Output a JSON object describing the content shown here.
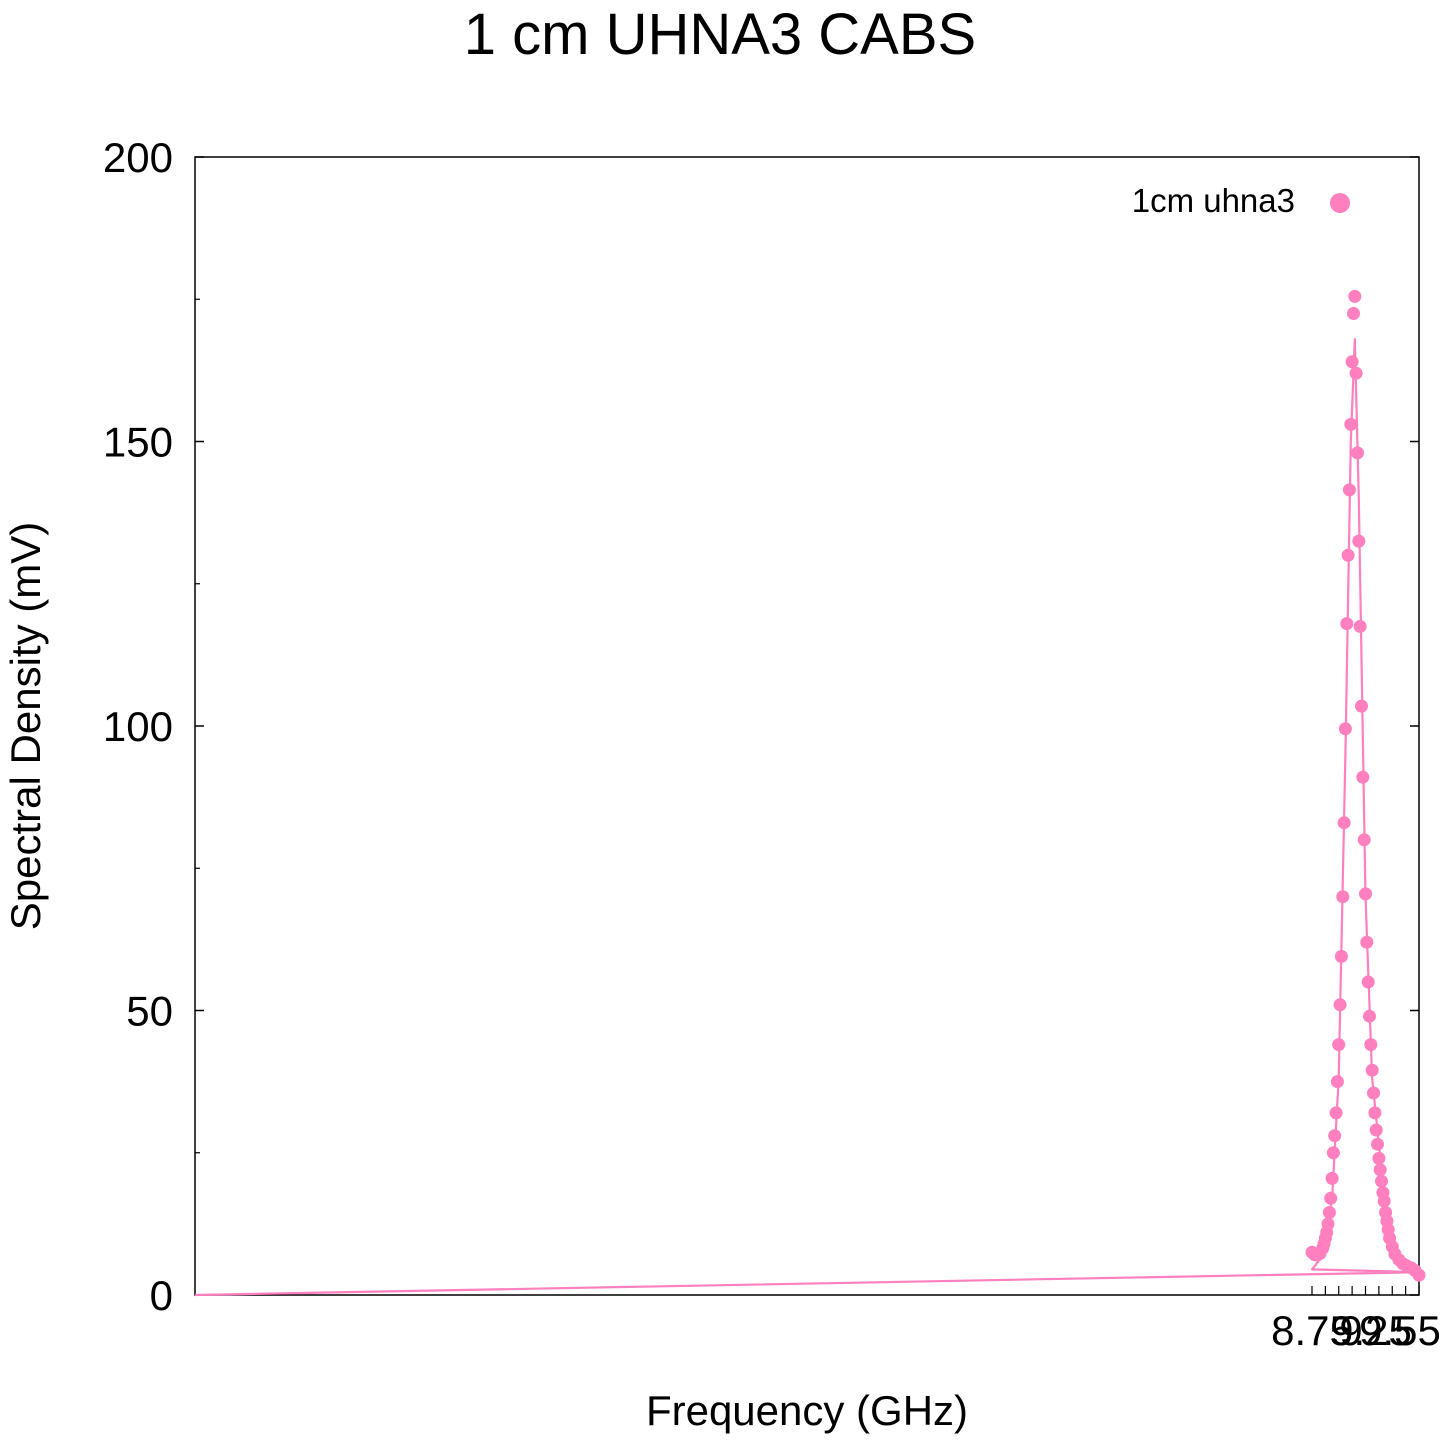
{
  "chart_data": {
    "type": "scatter",
    "title": "1 cm UHNA3 CABS",
    "xlabel": "Frequency (GHz)",
    "ylabel": "Spectral Density (mV)",
    "ylim": [
      0,
      200
    ],
    "xlim": [
      8.75,
      9.55
    ],
    "y_ticks": [
      "0",
      "50",
      "100",
      "150",
      "200"
    ],
    "x_ticks": [
      "8.75",
      "9",
      "9.25",
      "9.55"
    ],
    "grid": false,
    "legend_position": "top-right",
    "series": [
      {
        "name": "1cm uhna3",
        "color": "#ff7fbf",
        "marker": "circle",
        "points": [
          [
            8.75,
            7.5
          ],
          [
            8.77,
            7.1
          ],
          [
            8.79,
            7.0
          ],
          [
            8.81,
            7.3
          ],
          [
            8.83,
            8.2
          ],
          [
            8.84,
            9.0
          ],
          [
            8.85,
            10.0
          ],
          [
            8.86,
            11.0
          ],
          [
            8.87,
            12.5
          ],
          [
            8.88,
            14.5
          ],
          [
            8.89,
            17.0
          ],
          [
            8.9,
            20.5
          ],
          [
            8.91,
            25.0
          ],
          [
            8.92,
            28.0
          ],
          [
            8.93,
            32.0
          ],
          [
            8.94,
            37.5
          ],
          [
            8.95,
            44.0
          ],
          [
            8.96,
            51.0
          ],
          [
            8.97,
            59.5
          ],
          [
            8.98,
            70.0
          ],
          [
            8.99,
            83.0
          ],
          [
            9.0,
            99.5
          ],
          [
            9.01,
            118.0
          ],
          [
            9.02,
            130.0
          ],
          [
            9.03,
            141.5
          ],
          [
            9.04,
            153.0
          ],
          [
            9.05,
            164.0
          ],
          [
            9.06,
            172.5
          ],
          [
            9.07,
            175.5
          ],
          [
            9.08,
            162.0
          ],
          [
            9.09,
            148.0
          ],
          [
            9.1,
            132.5
          ],
          [
            9.11,
            117.5
          ],
          [
            9.12,
            103.5
          ],
          [
            9.13,
            91.0
          ],
          [
            9.14,
            80.0
          ],
          [
            9.15,
            70.5
          ],
          [
            9.16,
            62.0
          ],
          [
            9.17,
            55.0
          ],
          [
            9.18,
            49.0
          ],
          [
            9.19,
            44.0
          ],
          [
            9.2,
            39.5
          ],
          [
            9.21,
            35.5
          ],
          [
            9.22,
            32.0
          ],
          [
            9.23,
            29.0
          ],
          [
            9.24,
            26.5
          ],
          [
            9.25,
            24.0
          ],
          [
            9.26,
            22.0
          ],
          [
            9.27,
            20.0
          ],
          [
            9.28,
            18.0
          ],
          [
            9.29,
            16.5
          ],
          [
            9.3,
            14.5
          ],
          [
            9.31,
            13.0
          ],
          [
            9.32,
            11.5
          ],
          [
            9.33,
            10.0
          ],
          [
            9.35,
            8.5
          ],
          [
            9.37,
            7.2
          ],
          [
            9.4,
            6.2
          ],
          [
            9.43,
            5.5
          ],
          [
            9.46,
            5.1
          ],
          [
            9.49,
            4.8
          ],
          [
            9.52,
            4.3
          ],
          [
            9.55,
            3.5
          ]
        ]
      }
    ],
    "fit_curve": {
      "color": "#ff7fbf",
      "points": [
        [
          0,
          0
        ],
        [
          9.55,
          4.0
        ],
        [
          8.75,
          4.5
        ],
        [
          8.8,
          6.0
        ],
        [
          8.85,
          9.5
        ],
        [
          8.9,
          17.0
        ],
        [
          8.95,
          38.0
        ],
        [
          9.0,
          95.0
        ],
        [
          9.04,
          150.0
        ],
        [
          9.07,
          168.0
        ],
        [
          9.1,
          140.0
        ],
        [
          9.15,
          70.0
        ],
        [
          9.2,
          38.0
        ],
        [
          9.3,
          15.0
        ],
        [
          9.4,
          7.0
        ],
        [
          9.55,
          4.5
        ]
      ]
    }
  }
}
